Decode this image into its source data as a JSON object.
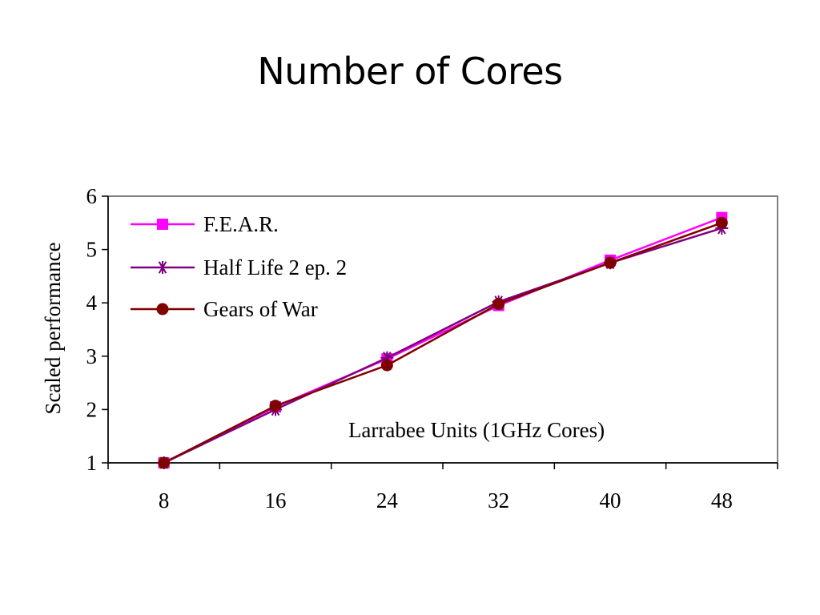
{
  "slide": {
    "title": "Number of Cores"
  },
  "chart_data": {
    "type": "line",
    "ylabel": "Scaled performance",
    "annotation": "Larrabee Units (1GHz Cores)",
    "x": [
      8,
      16,
      24,
      32,
      40,
      48
    ],
    "x_ticks": [
      "8",
      "16",
      "24",
      "32",
      "40",
      "48"
    ],
    "y_ticks": [
      "1",
      "2",
      "3",
      "4",
      "5",
      "6"
    ],
    "ylim": [
      1,
      6
    ],
    "grid": false,
    "legend_position": "top-left",
    "series": [
      {
        "name": "F.E.A.R.",
        "values": [
          1.0,
          2.05,
          2.95,
          3.95,
          4.8,
          5.6
        ],
        "color": "#ff00ff",
        "marker": "square"
      },
      {
        "name": "Half Life 2 ep. 2",
        "values": [
          1.0,
          2.0,
          2.97,
          4.02,
          4.75,
          5.4
        ],
        "color": "#800080",
        "marker": "asterisk"
      },
      {
        "name": "Gears of War",
        "values": [
          1.0,
          2.07,
          2.83,
          3.98,
          4.75,
          5.5
        ],
        "color": "#800000",
        "marker": "circle"
      }
    ]
  }
}
